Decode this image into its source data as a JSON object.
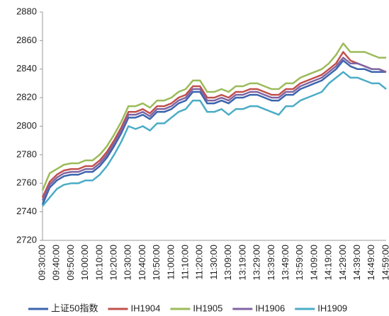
{
  "chart_data": {
    "type": "line",
    "categories": [
      "09:30:00",
      null,
      "09:40:00",
      null,
      "09:50:00",
      null,
      "10:00:00",
      null,
      "10:10:00",
      null,
      "10:20:00",
      null,
      "10:30:00",
      null,
      "10:40:00",
      null,
      "10:50:00",
      null,
      "11:00:00",
      null,
      "11:10:00",
      null,
      "11:20:00",
      null,
      "11:30:00",
      null,
      "13:09:00",
      null,
      "13:19:00",
      null,
      "13:29:00",
      null,
      "13:39:00",
      null,
      "13:49:00",
      null,
      "13:59:00",
      null,
      "14:09:00",
      null,
      "14:19:00",
      null,
      "14:29:00",
      null,
      "14:39:00",
      null,
      "14:49:00",
      null,
      "14:59:00"
    ],
    "series": [
      {
        "name": "上证50指数",
        "color": "#3b64ad",
        "values": [
          2745,
          2757,
          2762,
          2765,
          2766,
          2766,
          2768,
          2768,
          2772,
          2778,
          2786,
          2795,
          2806,
          2806,
          2808,
          2805,
          2810,
          2810,
          2812,
          2816,
          2818,
          2824,
          2824,
          2816,
          2816,
          2818,
          2816,
          2820,
          2820,
          2822,
          2822,
          2820,
          2818,
          2818,
          2822,
          2822,
          2826,
          2828,
          2830,
          2832,
          2836,
          2840,
          2846,
          2842,
          2840,
          2840,
          2838,
          2838,
          2838
        ]
      },
      {
        "name": "IH1904",
        "color": "#c0504d",
        "values": [
          2750,
          2761,
          2766,
          2769,
          2770,
          2770,
          2772,
          2772,
          2776,
          2782,
          2790,
          2799,
          2810,
          2810,
          2812,
          2809,
          2814,
          2814,
          2816,
          2820,
          2822,
          2828,
          2828,
          2820,
          2820,
          2822,
          2820,
          2824,
          2824,
          2826,
          2826,
          2824,
          2822,
          2822,
          2826,
          2826,
          2830,
          2832,
          2834,
          2836,
          2840,
          2844,
          2852,
          2846,
          2844,
          2842,
          2840,
          2840,
          2838
        ]
      },
      {
        "name": "IH1905",
        "color": "#9bbb59",
        "values": [
          2755,
          2767,
          2770,
          2773,
          2774,
          2774,
          2776,
          2776,
          2780,
          2786,
          2794,
          2803,
          2814,
          2814,
          2816,
          2813,
          2818,
          2818,
          2820,
          2824,
          2826,
          2832,
          2832,
          2824,
          2824,
          2826,
          2824,
          2828,
          2828,
          2830,
          2830,
          2828,
          2826,
          2826,
          2830,
          2830,
          2834,
          2836,
          2838,
          2840,
          2844,
          2850,
          2858,
          2852,
          2852,
          2852,
          2850,
          2848,
          2848
        ]
      },
      {
        "name": "IH1906",
        "color": "#8064a2",
        "values": [
          2748,
          2759,
          2764,
          2767,
          2768,
          2768,
          2770,
          2770,
          2774,
          2780,
          2788,
          2797,
          2808,
          2808,
          2810,
          2807,
          2812,
          2812,
          2814,
          2818,
          2820,
          2826,
          2826,
          2818,
          2818,
          2820,
          2818,
          2822,
          2822,
          2824,
          2824,
          2822,
          2820,
          2820,
          2824,
          2824,
          2828,
          2830,
          2832,
          2834,
          2838,
          2842,
          2848,
          2844,
          2844,
          2842,
          2840,
          2840,
          2838
        ]
      },
      {
        "name": "IH1909",
        "color": "#4bacc6",
        "values": [
          2744,
          2750,
          2756,
          2759,
          2760,
          2760,
          2762,
          2762,
          2766,
          2772,
          2780,
          2789,
          2800,
          2798,
          2800,
          2797,
          2802,
          2802,
          2806,
          2810,
          2812,
          2818,
          2818,
          2810,
          2810,
          2812,
          2808,
          2812,
          2812,
          2814,
          2814,
          2812,
          2810,
          2808,
          2814,
          2814,
          2818,
          2820,
          2822,
          2824,
          2830,
          2834,
          2838,
          2834,
          2834,
          2832,
          2830,
          2830,
          2826
        ]
      }
    ],
    "ylim": [
      2720,
      2880
    ],
    "yticks": [
      2720,
      2740,
      2760,
      2780,
      2800,
      2820,
      2840,
      2860,
      2880
    ],
    "legend": "bottom"
  }
}
